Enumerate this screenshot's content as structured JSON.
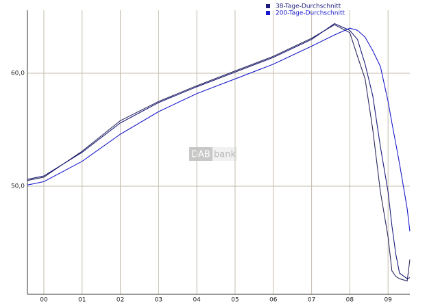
{
  "chart_data": {
    "type": "line",
    "watermark": {
      "left": "DAB",
      "right": "bank"
    },
    "x": [
      -0.43,
      0,
      1,
      2,
      3,
      4,
      5,
      6,
      7,
      7.6,
      8,
      8.2,
      8.4,
      8.6,
      8.8,
      9,
      9.1,
      9.2,
      9.3,
      9.5,
      9.57
    ],
    "series": [
      {
        "color": "#2a2a5e",
        "values": [
          50.5,
          50.8,
          53.1,
          55.8,
          57.5,
          58.9,
          60.2,
          61.5,
          63.1,
          64.3,
          63.6,
          61.5,
          59.5,
          55.0,
          49.5,
          45.5,
          42.5,
          42.0,
          41.8,
          41.6,
          43.5
        ]
      },
      {
        "name": "38-Tage-Durchschnitt",
        "color": "#1c1c7a",
        "values": [
          50.6,
          50.9,
          53.0,
          55.6,
          57.4,
          58.8,
          60.1,
          61.4,
          63.0,
          64.4,
          63.8,
          63.0,
          60.8,
          58.0,
          53.5,
          49.5,
          46.5,
          44.0,
          42.3,
          41.8,
          41.9
        ]
      },
      {
        "name": "200-Tage-Durchschnitt",
        "color": "#1a1acc",
        "values": [
          50.1,
          50.4,
          52.2,
          54.6,
          56.6,
          58.2,
          59.5,
          60.8,
          62.4,
          63.4,
          64.0,
          63.8,
          63.2,
          62.0,
          60.6,
          57.5,
          55.6,
          53.8,
          52.0,
          48.0,
          46.0
        ]
      }
    ],
    "xlim": [
      -0.43,
      9.57
    ],
    "xticks": [
      {
        "value": 0,
        "label": "00"
      },
      {
        "value": 1,
        "label": "01"
      },
      {
        "value": 2,
        "label": "02"
      },
      {
        "value": 3,
        "label": "03"
      },
      {
        "value": 4,
        "label": "04"
      },
      {
        "value": 5,
        "label": "05"
      },
      {
        "value": 6,
        "label": "06"
      },
      {
        "value": 7,
        "label": "07"
      },
      {
        "value": 8,
        "label": "08"
      },
      {
        "value": 9,
        "label": "09"
      }
    ],
    "ylim": [
      40.42,
      65.58
    ],
    "yticks": [
      {
        "value": 50,
        "label": "50,0"
      },
      {
        "value": 60,
        "label": "60,0"
      }
    ],
    "grid": true,
    "legend": "top"
  }
}
